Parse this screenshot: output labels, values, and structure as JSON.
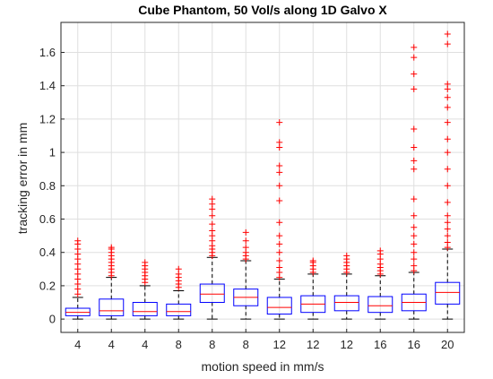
{
  "chart_data": {
    "type": "boxplot",
    "title": "Cube Phantom, 50 Vol/s along 1D Galvo X",
    "xlabel": "motion speed in mm/s",
    "ylabel": "tracking error in mm",
    "ylim": [
      -0.08,
      1.78
    ],
    "yticks": [
      0,
      0.2,
      0.4,
      0.6,
      0.8,
      1,
      1.2,
      1.4,
      1.6
    ],
    "ytick_labels": [
      "0",
      "0.2",
      "0.4",
      "0.6",
      "0.8",
      "1",
      "1.2",
      "1.4",
      "1.6"
    ],
    "grid": true,
    "colors": {
      "box": "#0000ff",
      "median": "#ff0000",
      "outlier": "#ff0000",
      "whisker": "#000000"
    },
    "categories": [
      "4",
      "4",
      "4",
      "8",
      "8",
      "8",
      "12",
      "12",
      "12",
      "16",
      "16",
      "20"
    ],
    "boxes": [
      {
        "whisker_low": 0.0,
        "q1": 0.02,
        "median": 0.04,
        "q3": 0.065,
        "whisker_high": 0.13,
        "outliers": [
          0.15,
          0.18,
          0.21,
          0.24,
          0.27,
          0.3,
          0.33,
          0.36,
          0.39,
          0.42,
          0.45,
          0.47
        ]
      },
      {
        "whisker_low": 0.0,
        "q1": 0.02,
        "median": 0.05,
        "q3": 0.12,
        "whisker_high": 0.25,
        "outliers": [
          0.26,
          0.28,
          0.3,
          0.32,
          0.34,
          0.36,
          0.38,
          0.4,
          0.42,
          0.43
        ]
      },
      {
        "whisker_low": 0.0,
        "q1": 0.02,
        "median": 0.045,
        "q3": 0.1,
        "whisker_high": 0.2,
        "outliers": [
          0.22,
          0.24,
          0.26,
          0.28,
          0.3,
          0.32,
          0.34
        ]
      },
      {
        "whisker_low": 0.0,
        "q1": 0.02,
        "median": 0.045,
        "q3": 0.09,
        "whisker_high": 0.17,
        "outliers": [
          0.19,
          0.21,
          0.23,
          0.25,
          0.27,
          0.3
        ]
      },
      {
        "whisker_low": 0.0,
        "q1": 0.1,
        "median": 0.15,
        "q3": 0.21,
        "whisker_high": 0.37,
        "outliers": [
          0.38,
          0.4,
          0.42,
          0.44,
          0.47,
          0.5,
          0.53,
          0.57,
          0.62,
          0.66,
          0.69,
          0.72
        ]
      },
      {
        "whisker_low": 0.0,
        "q1": 0.08,
        "median": 0.13,
        "q3": 0.18,
        "whisker_high": 0.35,
        "outliers": [
          0.36,
          0.38,
          0.4,
          0.43,
          0.47,
          0.52
        ]
      },
      {
        "whisker_low": 0.0,
        "q1": 0.03,
        "median": 0.07,
        "q3": 0.13,
        "whisker_high": 0.24,
        "outliers": [
          0.25,
          0.28,
          0.31,
          0.35,
          0.4,
          0.45,
          0.5,
          0.58,
          0.71,
          0.8,
          0.88,
          0.92,
          1.03,
          1.06,
          1.18
        ]
      },
      {
        "whisker_low": 0.0,
        "q1": 0.04,
        "median": 0.09,
        "q3": 0.14,
        "whisker_high": 0.27,
        "outliers": [
          0.28,
          0.3,
          0.32,
          0.34,
          0.35
        ]
      },
      {
        "whisker_low": 0.0,
        "q1": 0.05,
        "median": 0.1,
        "q3": 0.14,
        "whisker_high": 0.27,
        "outliers": [
          0.28,
          0.3,
          0.32,
          0.34,
          0.36,
          0.38
        ]
      },
      {
        "whisker_low": 0.0,
        "q1": 0.04,
        "median": 0.08,
        "q3": 0.135,
        "whisker_high": 0.26,
        "outliers": [
          0.27,
          0.29,
          0.31,
          0.33,
          0.36,
          0.39,
          0.41
        ]
      },
      {
        "whisker_low": 0.0,
        "q1": 0.05,
        "median": 0.1,
        "q3": 0.15,
        "whisker_high": 0.28,
        "outliers": [
          0.29,
          0.32,
          0.36,
          0.4,
          0.45,
          0.5,
          0.55,
          0.62,
          0.72,
          0.9,
          0.95,
          1.03,
          1.14,
          1.38,
          1.47,
          1.57,
          1.63
        ]
      },
      {
        "whisker_low": 0.0,
        "q1": 0.09,
        "median": 0.16,
        "q3": 0.22,
        "whisker_high": 0.42,
        "outliers": [
          0.43,
          0.46,
          0.5,
          0.54,
          0.58,
          0.62,
          0.7,
          0.8,
          0.9,
          1.0,
          1.08,
          1.18,
          1.27,
          1.33,
          1.38,
          1.41,
          1.65,
          1.71
        ]
      }
    ]
  }
}
